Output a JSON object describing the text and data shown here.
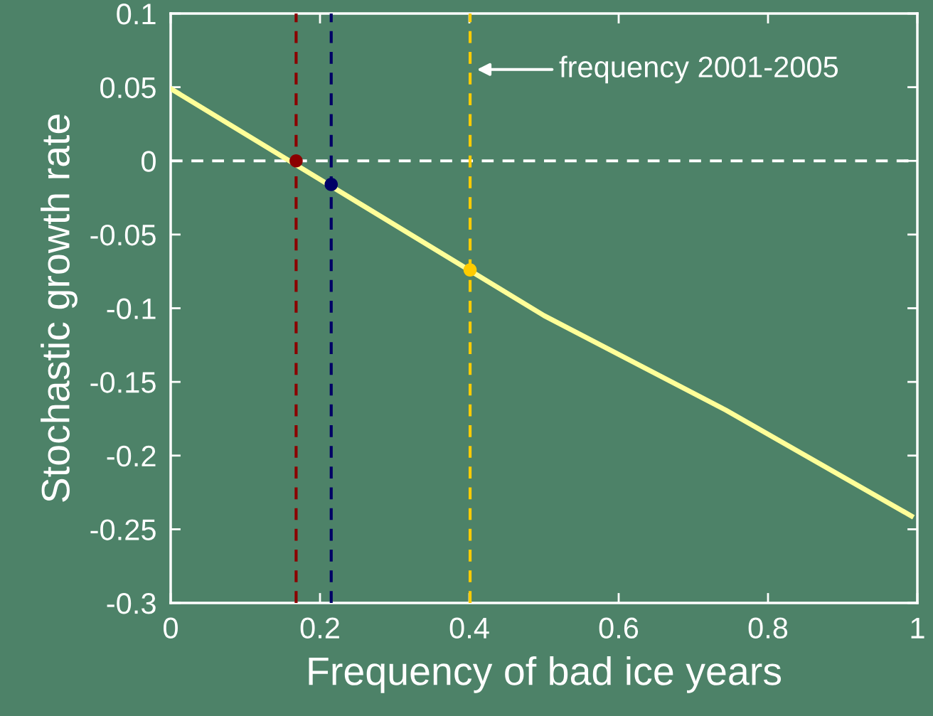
{
  "chart_data": {
    "type": "line",
    "xlabel": "Frequency of bad ice years",
    "ylabel": "Stochastic growth rate",
    "xlim": [
      0,
      1
    ],
    "ylim": [
      -0.3,
      0.1
    ],
    "xticks": [
      0,
      0.2,
      0.4,
      0.6,
      0.8,
      1
    ],
    "yticks": [
      -0.3,
      -0.25,
      -0.2,
      -0.15,
      -0.1,
      -0.05,
      0,
      0.05,
      0.1
    ],
    "grid": false,
    "legend": false,
    "marker": "none",
    "line_style": "solid",
    "series": [
      {
        "color": "#ffff99",
        "x": [
          0,
          0.5,
          0.743,
          0.992
        ],
        "values": [
          0.049,
          -0.105,
          -0.169,
          -0.241
        ]
      },
      {
        "type": "scatter",
        "marker": "circle",
        "colors": [
          "#8b0000",
          "#000066",
          "#ffcc00"
        ],
        "x": [
          0.168,
          0.215,
          0.401
        ],
        "values": [
          0,
          -0.016,
          -0.074
        ]
      }
    ],
    "ref_lines": [
      {
        "axis": "y",
        "value": 0,
        "color": "#ffffff",
        "line_style": "dashed"
      },
      {
        "axis": "x",
        "value": 0.168,
        "color": "#8b0000",
        "line_style": "dashed"
      },
      {
        "axis": "x",
        "value": 0.215,
        "color": "#000066",
        "line_style": "dashed"
      },
      {
        "axis": "x",
        "value": 0.401,
        "color": "#ffcc00",
        "line_style": "dashed"
      }
    ],
    "annotations": [
      "frequency 2001-2005"
    ]
  }
}
